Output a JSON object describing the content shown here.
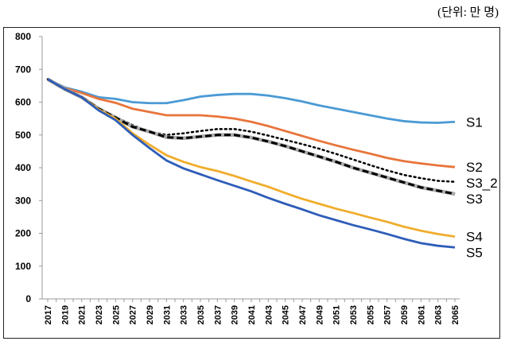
{
  "unit_label": "(단위: 만 명)",
  "chart_data": {
    "type": "line",
    "title": "",
    "xlabel": "",
    "ylabel": "",
    "ylim": [
      0,
      800
    ],
    "yticks": [
      0,
      100,
      200,
      300,
      400,
      500,
      600,
      700,
      800
    ],
    "x": [
      2017,
      2019,
      2021,
      2023,
      2025,
      2027,
      2029,
      2031,
      2033,
      2035,
      2037,
      2039,
      2041,
      2043,
      2045,
      2047,
      2049,
      2051,
      2053,
      2055,
      2057,
      2059,
      2061,
      2063,
      2065
    ],
    "grid": false,
    "legend": "inline labels at line ends",
    "series": [
      {
        "name": "S1",
        "color": "#4a9ad4",
        "style": "solid",
        "values": [
          670,
          645,
          632,
          615,
          610,
          600,
          597,
          597,
          606,
          617,
          622,
          625,
          625,
          620,
          612,
          602,
          590,
          580,
          570,
          560,
          550,
          542,
          538,
          537,
          540
        ]
      },
      {
        "name": "S2",
        "color": "#e8743b",
        "style": "solid",
        "values": [
          670,
          643,
          628,
          610,
          598,
          580,
          570,
          560,
          560,
          560,
          556,
          550,
          540,
          527,
          512,
          497,
          482,
          468,
          455,
          443,
          430,
          420,
          413,
          407,
          402
        ]
      },
      {
        "name": "S3_2",
        "color": "#000000",
        "style": "dotted",
        "values": [
          670,
          640,
          615,
          580,
          555,
          530,
          510,
          500,
          505,
          512,
          518,
          518,
          510,
          498,
          485,
          472,
          458,
          442,
          425,
          408,
          392,
          378,
          368,
          360,
          357
        ]
      },
      {
        "name": "S3",
        "color": "#000000",
        "style": "dashed",
        "values": [
          670,
          640,
          615,
          580,
          553,
          525,
          510,
          493,
          490,
          495,
          500,
          500,
          492,
          480,
          466,
          450,
          434,
          418,
          400,
          385,
          370,
          355,
          340,
          330,
          320
        ]
      },
      {
        "name": "S4",
        "color": "#f0ad2c",
        "style": "solid",
        "values": [
          670,
          640,
          615,
          578,
          550,
          505,
          470,
          438,
          418,
          402,
          390,
          375,
          358,
          342,
          323,
          305,
          290,
          275,
          262,
          248,
          235,
          220,
          208,
          198,
          190
        ]
      },
      {
        "name": "S5",
        "color": "#2e5db8",
        "style": "solid",
        "values": [
          670,
          640,
          615,
          575,
          545,
          500,
          460,
          422,
          398,
          380,
          362,
          345,
          328,
          308,
          290,
          273,
          255,
          240,
          225,
          212,
          198,
          183,
          170,
          162,
          157
        ]
      }
    ]
  }
}
